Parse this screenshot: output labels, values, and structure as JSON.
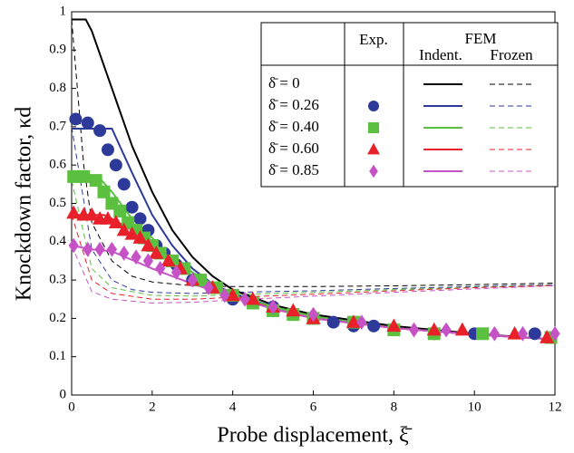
{
  "chart_data": {
    "type": "line",
    "x_label": "Probe displacement, ξ̄",
    "y_label": "Knockdown factor, κd",
    "xlim": [
      0,
      12
    ],
    "xticks": [
      0,
      2,
      4,
      6,
      8,
      10,
      12
    ],
    "ylim": [
      0,
      1
    ],
    "yticks": [
      0,
      0.1,
      0.2,
      0.3,
      0.4,
      0.5,
      0.6,
      0.7,
      0.8,
      0.9,
      1
    ],
    "legend": {
      "exp": "Exp.",
      "fem": "FEM",
      "indent": "Indent.",
      "frozen": "Frozen"
    },
    "series": [
      {
        "name": "δ̄ = 0",
        "color": "#000000",
        "indent": {
          "x": [
            0,
            0.35,
            0.5,
            1,
            1.5,
            2,
            2.5,
            3,
            3.5,
            4,
            5,
            6,
            8,
            10,
            12
          ],
          "values": [
            0.98,
            0.98,
            0.95,
            0.8,
            0.65,
            0.53,
            0.43,
            0.36,
            0.31,
            0.275,
            0.235,
            0.21,
            0.18,
            0.16,
            0.145
          ]
        },
        "frozen": {
          "x": [
            0,
            0.3,
            0.5,
            1,
            1.5,
            2,
            3,
            4,
            6,
            8,
            10,
            12
          ],
          "values": [
            0.98,
            0.6,
            0.45,
            0.35,
            0.31,
            0.295,
            0.285,
            0.283,
            0.283,
            0.285,
            0.288,
            0.292
          ]
        }
      },
      {
        "name": "δ̄ = 0.26",
        "color": "#2e3a9a",
        "marker": "circle",
        "exp": {
          "x": [
            0.1,
            0.4,
            0.7,
            0.9,
            1.1,
            1.3,
            1.5,
            1.7,
            1.9,
            2.1,
            2.3,
            2.6,
            3,
            3.5,
            4,
            4.5,
            5,
            5.5,
            6,
            6.5,
            7,
            7.5,
            8,
            9,
            10,
            11.5
          ],
          "values": [
            0.72,
            0.71,
            0.69,
            0.64,
            0.6,
            0.55,
            0.49,
            0.46,
            0.43,
            0.39,
            0.37,
            0.34,
            0.3,
            0.28,
            0.25,
            0.24,
            0.23,
            0.21,
            0.2,
            0.19,
            0.18,
            0.18,
            0.17,
            0.16,
            0.16,
            0.16
          ]
        },
        "indent": {
          "x": [
            0,
            1,
            1.5,
            2,
            2.5,
            3,
            3.5,
            4,
            5,
            6,
            8,
            10,
            12
          ],
          "values": [
            0.695,
            0.695,
            0.58,
            0.47,
            0.39,
            0.33,
            0.29,
            0.265,
            0.23,
            0.205,
            0.175,
            0.158,
            0.145
          ]
        },
        "frozen": {
          "x": [
            0,
            0.5,
            1,
            1.5,
            2,
            3,
            4,
            6,
            8,
            10,
            12
          ],
          "values": [
            0.7,
            0.38,
            0.3,
            0.275,
            0.268,
            0.265,
            0.268,
            0.272,
            0.278,
            0.283,
            0.288
          ]
        }
      },
      {
        "name": "δ̄ = 0.40",
        "color": "#5bbf3f",
        "marker": "square",
        "exp": {
          "x": [
            0.05,
            0.3,
            0.6,
            0.8,
            1,
            1.2,
            1.4,
            1.6,
            1.8,
            2,
            2.2,
            2.5,
            2.8,
            3.2,
            3.6,
            4,
            4.5,
            5,
            5.5,
            6,
            7,
            8,
            9,
            10.2,
            11.9
          ],
          "values": [
            0.57,
            0.57,
            0.56,
            0.53,
            0.5,
            0.48,
            0.45,
            0.43,
            0.41,
            0.39,
            0.37,
            0.35,
            0.33,
            0.3,
            0.28,
            0.26,
            0.24,
            0.22,
            0.21,
            0.2,
            0.19,
            0.17,
            0.16,
            0.16,
            0.15
          ]
        },
        "indent": {
          "x": [
            0,
            0.7,
            1,
            1.5,
            2,
            2.5,
            3,
            4,
            5,
            6,
            8,
            10,
            12
          ],
          "values": [
            0.565,
            0.565,
            0.53,
            0.46,
            0.41,
            0.36,
            0.32,
            0.26,
            0.23,
            0.205,
            0.175,
            0.158,
            0.145
          ]
        },
        "frozen": {
          "x": [
            0,
            0.5,
            1,
            2,
            3,
            4,
            6,
            8,
            10,
            12
          ],
          "values": [
            0.56,
            0.33,
            0.28,
            0.26,
            0.258,
            0.262,
            0.268,
            0.275,
            0.281,
            0.287
          ]
        }
      },
      {
        "name": "δ̄ = 0.60",
        "color": "#e8202a",
        "marker": "triangle",
        "exp": {
          "x": [
            0.05,
            0.3,
            0.5,
            0.7,
            0.9,
            1.1,
            1.3,
            1.5,
            1.7,
            1.9,
            2.1,
            2.4,
            2.7,
            3,
            3.5,
            4,
            4.5,
            5,
            5.5,
            6,
            7,
            8,
            9,
            9.7,
            11,
            11.8
          ],
          "values": [
            0.475,
            0.47,
            0.47,
            0.46,
            0.46,
            0.45,
            0.43,
            0.42,
            0.41,
            0.39,
            0.37,
            0.35,
            0.33,
            0.3,
            0.28,
            0.26,
            0.25,
            0.23,
            0.22,
            0.2,
            0.19,
            0.18,
            0.17,
            0.17,
            0.16,
            0.15
          ]
        },
        "indent": {
          "x": [
            0,
            0.8,
            1,
            1.5,
            2,
            2.5,
            3,
            4,
            5,
            6,
            8,
            10,
            12
          ],
          "values": [
            0.47,
            0.47,
            0.46,
            0.43,
            0.39,
            0.35,
            0.31,
            0.26,
            0.225,
            0.2,
            0.175,
            0.158,
            0.145
          ]
        },
        "frozen": {
          "x": [
            0,
            0.5,
            1,
            2,
            3,
            4,
            6,
            8,
            10,
            12
          ],
          "values": [
            0.47,
            0.3,
            0.265,
            0.25,
            0.25,
            0.255,
            0.263,
            0.272,
            0.28,
            0.286
          ]
        }
      },
      {
        "name": "δ̄ = 0.85",
        "color": "#c653c6",
        "marker": "diamond",
        "exp": {
          "x": [
            0.05,
            0.4,
            0.7,
            1,
            1.3,
            1.6,
            1.9,
            2.2,
            2.6,
            3,
            3.4,
            3.8,
            4.3,
            5,
            6,
            7.2,
            8.5,
            9.3,
            10.5,
            11.2,
            12
          ],
          "values": [
            0.39,
            0.38,
            0.38,
            0.38,
            0.37,
            0.36,
            0.35,
            0.33,
            0.32,
            0.3,
            0.28,
            0.26,
            0.25,
            0.23,
            0.21,
            0.19,
            0.17,
            0.17,
            0.16,
            0.16,
            0.16
          ]
        },
        "indent": {
          "x": [
            0,
            0.5,
            1,
            2,
            3,
            4,
            5,
            6,
            8,
            10,
            12
          ],
          "values": [
            0.39,
            0.38,
            0.375,
            0.33,
            0.29,
            0.255,
            0.225,
            0.2,
            0.175,
            0.158,
            0.145
          ]
        },
        "frozen": {
          "x": [
            0,
            0.5,
            1,
            2,
            3,
            4,
            6,
            8,
            10,
            12
          ],
          "values": [
            0.39,
            0.27,
            0.25,
            0.24,
            0.242,
            0.248,
            0.258,
            0.268,
            0.277,
            0.285
          ]
        }
      }
    ]
  }
}
